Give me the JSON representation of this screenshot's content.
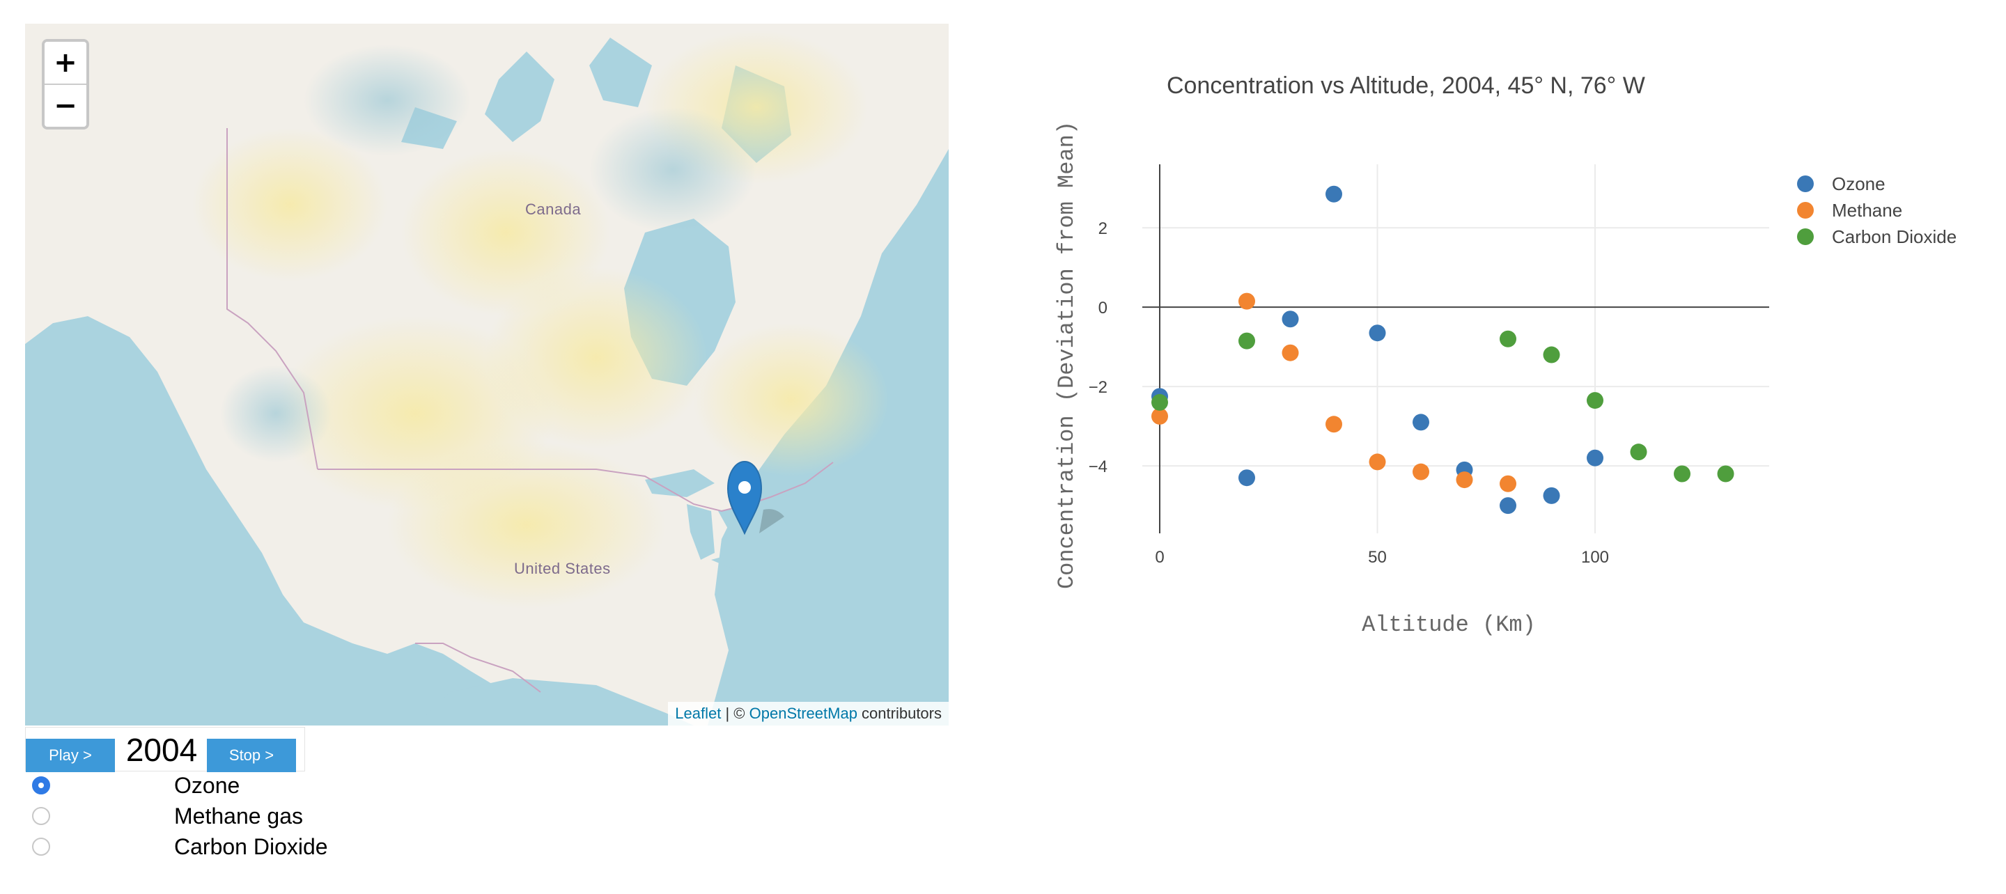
{
  "map": {
    "zoom_in_label": "+",
    "zoom_out_label": "−",
    "labels": {
      "canada": "Canada",
      "united_states": "United States"
    },
    "attribution": {
      "leaflet": "Leaflet",
      "separator": " | © ",
      "osm": "OpenStreetMap",
      "suffix": " contributors"
    },
    "marker_icon": "map-marker-icon",
    "colors": {
      "water": "#aad3df",
      "land": "#f2efe9",
      "heat": "#f8f0b8",
      "border": "#c9a2c0",
      "marker": "#2a81cb"
    }
  },
  "controls": {
    "play_label": "Play >",
    "stop_label": "Stop >",
    "year": "2004",
    "options": [
      {
        "label": "Ozone",
        "checked": true
      },
      {
        "label": "Methane gas",
        "checked": false
      },
      {
        "label": "Carbon Dioxide",
        "checked": false
      }
    ]
  },
  "chart_data": {
    "type": "scatter",
    "title": "Concentration vs Altitude, 2004, 45° N, 76° W",
    "xlabel": "Altitude (Km)",
    "ylabel": "Concentration (Deviation from Mean)",
    "xlim": [
      -4,
      140
    ],
    "ylim": [
      -5.7,
      3.6
    ],
    "x_ticks": [
      0,
      50,
      100
    ],
    "y_ticks": [
      2,
      0,
      -2,
      -4
    ],
    "grid": true,
    "legend_position": "top-right",
    "series": [
      {
        "name": "Ozone",
        "color": "#3a78b6",
        "points": [
          [
            0,
            -2.25
          ],
          [
            20,
            -4.3
          ],
          [
            30,
            -0.3
          ],
          [
            40,
            2.85
          ],
          [
            50,
            -0.65
          ],
          [
            60,
            -2.9
          ],
          [
            70,
            -4.1
          ],
          [
            80,
            -5.0
          ],
          [
            90,
            -4.75
          ],
          [
            100,
            -3.8
          ]
        ]
      },
      {
        "name": "Methane",
        "color": "#f28530",
        "points": [
          [
            0,
            -2.75
          ],
          [
            20,
            0.15
          ],
          [
            30,
            -1.15
          ],
          [
            40,
            -2.95
          ],
          [
            50,
            -3.9
          ],
          [
            60,
            -4.15
          ],
          [
            70,
            -4.35
          ],
          [
            80,
            -4.45
          ]
        ]
      },
      {
        "name": "Carbon Dioxide",
        "color": "#4f9e3d",
        "points": [
          [
            0,
            -2.4
          ],
          [
            20,
            -0.85
          ],
          [
            80,
            -0.8
          ],
          [
            90,
            -1.2
          ],
          [
            100,
            -2.35
          ],
          [
            110,
            -3.65
          ],
          [
            120,
            -4.2
          ],
          [
            130,
            -4.2
          ]
        ]
      }
    ]
  }
}
